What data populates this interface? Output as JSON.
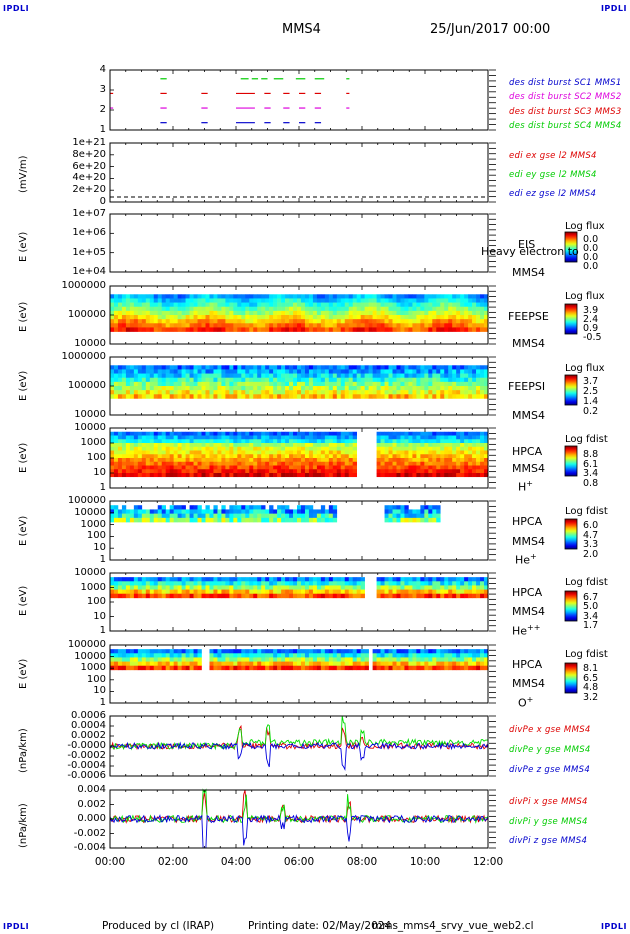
{
  "header": {
    "corner_tl": "IPDLI",
    "corner_tr": "IPDLI",
    "corner_bl": "IPDLI",
    "corner_br": "IPDLI",
    "spacecraft": "MMS4",
    "datetime": "25/Jun/2017 00:00"
  },
  "footer": {
    "produced_by": "Produced by cl (IRAP)",
    "printing_date": "Printing date: 02/May/2024",
    "script": "mms_mms4_srvy_vue_web2.cl"
  },
  "colors": {
    "mms1": "#0000cc",
    "mms2": "#dd00dd",
    "mms3": "#dd0000",
    "mms4": "#00cc00",
    "x": "#dd0000",
    "y": "#00dd00",
    "z": "#0000dd"
  },
  "chart_data": [
    {
      "id": "burst",
      "type": "scatter",
      "ylabel": "",
      "yticks": [
        "4",
        "3",
        "2",
        "1"
      ],
      "ylim": [
        0.5,
        4.6
      ],
      "legend": [
        "des dist burst SC1 MMS1",
        "des dist burst SC2 MMS2",
        "des dist burst SC3 MMS3",
        "des dist burst SC4 MMS4"
      ],
      "series": [
        {
          "name": "des dist burst SC4 MMS4",
          "level": 4,
          "color": "#00cc00",
          "intervals": [
            [
              1.6,
              1.8
            ],
            [
              4.15,
              4.4
            ],
            [
              4.5,
              4.7
            ],
            [
              4.8,
              5.0
            ],
            [
              5.2,
              5.5
            ],
            [
              5.9,
              6.2
            ],
            [
              6.5,
              6.8
            ],
            [
              7.5,
              7.6
            ]
          ]
        },
        {
          "name": "des dist burst SC3 MMS3",
          "level": 3,
          "color": "#dd0000",
          "intervals": [
            [
              0.0,
              0.1
            ],
            [
              1.6,
              1.8
            ],
            [
              2.9,
              3.1
            ],
            [
              4.0,
              4.6
            ],
            [
              4.9,
              5.1
            ],
            [
              5.5,
              5.7
            ],
            [
              6.0,
              6.2
            ],
            [
              6.5,
              6.7
            ],
            [
              7.5,
              7.6
            ]
          ]
        },
        {
          "name": "des dist burst SC2 MMS2",
          "level": 2,
          "color": "#dd00dd",
          "intervals": [
            [
              0.0,
              0.1
            ],
            [
              1.6,
              1.8
            ],
            [
              2.9,
              3.1
            ],
            [
              4.0,
              4.6
            ],
            [
              4.9,
              5.1
            ],
            [
              5.5,
              5.7
            ],
            [
              6.0,
              6.2
            ],
            [
              6.5,
              6.7
            ],
            [
              7.5,
              7.6
            ]
          ]
        },
        {
          "name": "des dist burst SC1 MMS1",
          "level": 1,
          "color": "#0000cc",
          "intervals": [
            [
              1.6,
              1.8
            ],
            [
              2.9,
              3.1
            ],
            [
              4.0,
              4.6
            ],
            [
              4.9,
              5.1
            ],
            [
              5.5,
              5.7
            ],
            [
              6.0,
              6.2
            ],
            [
              6.5,
              6.7
            ]
          ]
        }
      ]
    },
    {
      "id": "edi",
      "type": "line",
      "ylabel": "(mV/m)",
      "yticks": [
        "1e+21",
        "8e+20",
        "6e+20",
        "4e+20",
        "2e+20",
        "0"
      ],
      "legend": [
        "edi ex gse l2 MMS4",
        "edi ey gse l2 MMS4",
        "edi ez gse l2 MMS4"
      ],
      "note": "dashed zero line only"
    },
    {
      "id": "eis",
      "type": "heatmap",
      "ylabel": "E (eV)",
      "yticks": [
        "1e+07",
        "1e+06",
        "1e+05",
        "1e+04"
      ],
      "instrument": [
        "EIS",
        "MMS4"
      ],
      "overlay_text": "Heavy electron to",
      "colorbar": {
        "title": "Log flux",
        "values": [
          "0.0",
          "0.0",
          "0.0",
          "0.0"
        ]
      }
    },
    {
      "id": "feepse",
      "type": "heatmap",
      "ylabel": "E (eV)",
      "yticks": [
        "1000000",
        "100000",
        "10000"
      ],
      "instrument": [
        "FEEPSE",
        "MMS4"
      ],
      "colorbar": {
        "title": "Log flux",
        "values": [
          "3.9",
          "2.4",
          "0.9",
          "-0.5"
        ]
      }
    },
    {
      "id": "feepsi",
      "type": "heatmap",
      "ylabel": "E (eV)",
      "yticks": [
        "1000000",
        "100000",
        "10000"
      ],
      "instrument": [
        "FEEPSI",
        "MMS4"
      ],
      "colorbar": {
        "title": "Log flux",
        "values": [
          "3.7",
          "2.5",
          "1.4",
          "0.2"
        ]
      }
    },
    {
      "id": "hpca_h",
      "type": "heatmap",
      "ylabel": "E (eV)",
      "yticks": [
        "10000",
        "1000",
        "100",
        "10",
        "1"
      ],
      "instrument": [
        "HPCA",
        "MMS4"
      ],
      "species": "H",
      "charge": "+",
      "colorbar": {
        "title": "Log fdist",
        "values": [
          "8.8",
          "6.1",
          "3.4",
          "0.8"
        ]
      }
    },
    {
      "id": "hpca_he",
      "type": "heatmap",
      "ylabel": "E (eV)",
      "yticks": [
        "100000",
        "10000",
        "1000",
        "100",
        "10",
        "1"
      ],
      "instrument": [
        "HPCA",
        "MMS4"
      ],
      "species": "He",
      "charge": "+",
      "colorbar": {
        "title": "Log fdist",
        "values": [
          "6.0",
          "4.7",
          "3.3",
          "2.0"
        ]
      }
    },
    {
      "id": "hpca_hepp",
      "type": "heatmap",
      "ylabel": "E (eV)",
      "yticks": [
        "10000",
        "1000",
        "100",
        "10",
        "1"
      ],
      "instrument": [
        "HPCA",
        "MMS4"
      ],
      "species": "He",
      "charge": "++",
      "colorbar": {
        "title": "Log fdist",
        "values": [
          "6.7",
          "5.0",
          "3.4",
          "1.7"
        ]
      }
    },
    {
      "id": "hpca_o",
      "type": "heatmap",
      "ylabel": "E (eV)",
      "yticks": [
        "100000",
        "10000",
        "1000",
        "100",
        "10",
        "1"
      ],
      "instrument": [
        "HPCA",
        "MMS4"
      ],
      "species": "O",
      "charge": "+",
      "colorbar": {
        "title": "Log fdist",
        "values": [
          "8.1",
          "6.5",
          "4.8",
          "3.2"
        ]
      }
    },
    {
      "id": "divpe",
      "type": "line",
      "ylabel": "(nPa/km)",
      "yticks": [
        "0.0006",
        "0.0004",
        "0.0002",
        "-0.0000",
        "-0.0002",
        "-0.0004",
        "-0.0006"
      ],
      "ylim": [
        -0.0006,
        0.0006
      ],
      "legend": [
        "divPe x gse MMS4",
        "divPe y gse MMS4",
        "divPe z gse MMS4"
      ]
    },
    {
      "id": "divpi",
      "type": "line",
      "ylabel": "(nPa/km)",
      "yticks": [
        "0.004",
        "0.002",
        "0.000",
        "-0.002",
        "-0.004"
      ],
      "ylim": [
        -0.005,
        0.005
      ],
      "legend": [
        "divPi x gse MMS4",
        "divPi y gse MMS4",
        "divPi z gse MMS4"
      ]
    }
  ],
  "x_axis": {
    "ticks": [
      "00:00",
      "02:00",
      "04:00",
      "06:00",
      "08:00",
      "10:00",
      "12:00"
    ],
    "xlim": [
      0,
      12
    ]
  }
}
